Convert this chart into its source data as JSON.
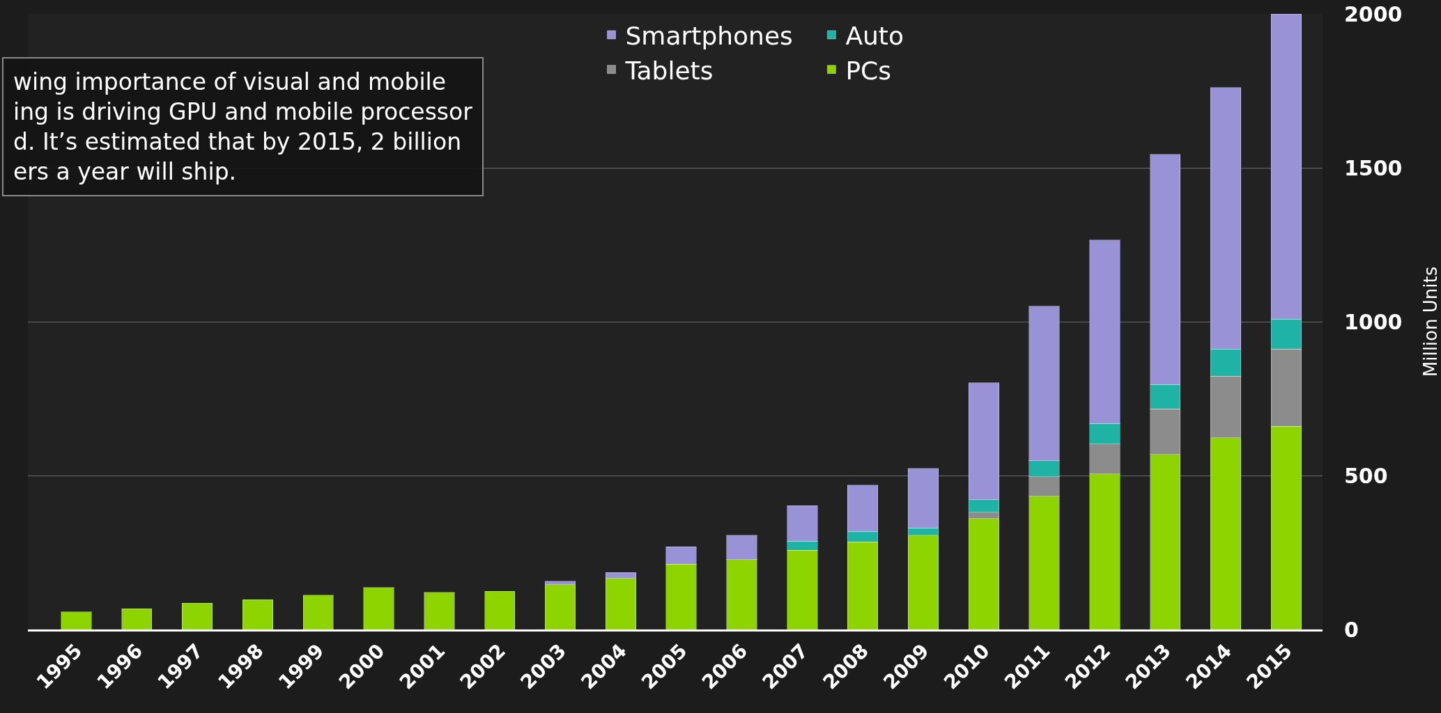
{
  "chart_data": {
    "type": "bar",
    "stacked": true,
    "ylabel": "Million Units",
    "categories": [
      "1995",
      "1996",
      "1997",
      "1998",
      "1999",
      "2000",
      "2001",
      "2002",
      "2003",
      "2004",
      "2005",
      "2006",
      "2007",
      "2008",
      "2009",
      "2010",
      "2011",
      "2012",
      "2013",
      "2014",
      "2015"
    ],
    "series": [
      {
        "name": "PCs",
        "color": "#8ed400",
        "values": [
          57,
          67,
          85,
          97,
          112,
          136,
          121,
          124,
          145,
          166,
          212,
          227,
          257,
          284,
          306,
          360,
          433,
          505,
          569,
          623,
          660
        ]
      },
      {
        "name": "Tablets",
        "color": "#8c8c8c",
        "values": [
          null,
          null,
          null,
          null,
          null,
          null,
          null,
          null,
          null,
          null,
          null,
          null,
          null,
          null,
          null,
          21,
          63,
          97,
          148,
          200,
          251
        ]
      },
      {
        "name": "Auto",
        "color": "#1fb3a5",
        "values": [
          null,
          null,
          null,
          null,
          null,
          null,
          null,
          null,
          null,
          null,
          null,
          null,
          30,
          34,
          24,
          40,
          52,
          67,
          79,
          88,
          97
        ]
      },
      {
        "name": "Smartphones",
        "color": "#9a92d6",
        "values": [
          null,
          null,
          null,
          null,
          null,
          null,
          null,
          null,
          12,
          19,
          57,
          79,
          115,
          151,
          193,
          381,
          502,
          596,
          747,
          850,
          992
        ]
      }
    ],
    "ylim": [
      0,
      2000
    ],
    "yticks": [
      0,
      500,
      1000,
      1500,
      2000
    ],
    "grid": "y",
    "legend": "top",
    "annotations": [
      "wing importance of visual and mobile",
      "ing is driving GPU and mobile processor",
      "d. It’s estimated that by 2015, 2 billion",
      "ers a year will ship."
    ]
  }
}
